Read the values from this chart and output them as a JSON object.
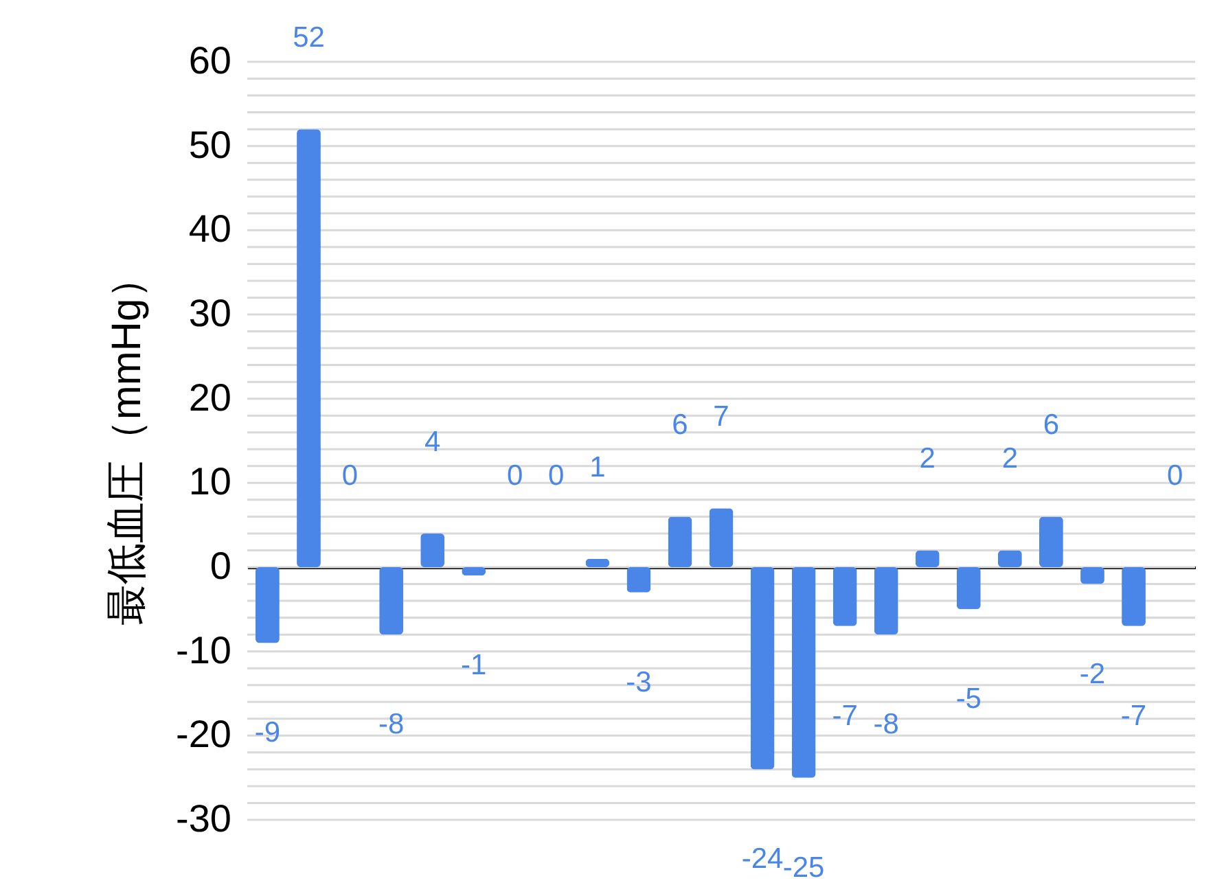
{
  "chart_data": {
    "type": "bar",
    "ylabel": "最低血圧（mmHg）",
    "categories": [
      null,
      null,
      null,
      null,
      null,
      null,
      null,
      null,
      null,
      null,
      null,
      null,
      null,
      null,
      null,
      null,
      null,
      null,
      null,
      null,
      null,
      null,
      null
    ],
    "values": [
      -9,
      52,
      0,
      -8,
      4,
      -1,
      0,
      0,
      1,
      -3,
      6,
      7,
      -24,
      -25,
      -7,
      -8,
      2,
      -5,
      2,
      6,
      -2,
      -7,
      0
    ],
    "color": "#4a86e8",
    "data_labels": true,
    "ylim": [
      -30,
      60
    ],
    "yticks": [
      -30,
      {
        "value": -28,
        "label": null
      },
      {
        "value": -26,
        "label": null
      },
      {
        "value": -24,
        "label": null
      },
      {
        "value": -22,
        "label": null
      },
      -20,
      {
        "value": -18,
        "label": null
      },
      {
        "value": -16,
        "label": null
      },
      {
        "value": -14,
        "label": null
      },
      {
        "value": -12,
        "label": null
      },
      -10,
      {
        "value": -8,
        "label": null
      },
      {
        "value": -6,
        "label": null
      },
      {
        "value": -4,
        "label": null
      },
      {
        "value": -2,
        "label": null
      },
      0,
      {
        "value": 2,
        "label": null
      },
      {
        "value": 4,
        "label": null
      },
      {
        "value": 6,
        "label": null
      },
      {
        "value": 8,
        "label": null
      },
      10,
      {
        "value": 12,
        "label": null
      },
      {
        "value": 14,
        "label": null
      },
      {
        "value": 16,
        "label": null
      },
      {
        "value": 18,
        "label": null
      },
      20,
      {
        "value": 22,
        "label": null
      },
      {
        "value": 24,
        "label": null
      },
      {
        "value": 26,
        "label": null
      },
      {
        "value": 28,
        "label": null
      },
      30,
      {
        "value": 32,
        "label": null
      },
      {
        "value": 34,
        "label": null
      },
      {
        "value": 36,
        "label": null
      },
      {
        "value": 38,
        "label": null
      },
      40,
      {
        "value": 42,
        "label": null
      },
      {
        "value": 44,
        "label": null
      },
      {
        "value": 46,
        "label": null
      },
      {
        "value": 48,
        "label": null
      },
      50,
      {
        "value": 52,
        "label": null
      },
      {
        "value": 54,
        "label": null
      },
      {
        "value": 56,
        "label": null
      },
      {
        "value": 58,
        "label": null
      },
      60
    ],
    "grid": "y"
  }
}
